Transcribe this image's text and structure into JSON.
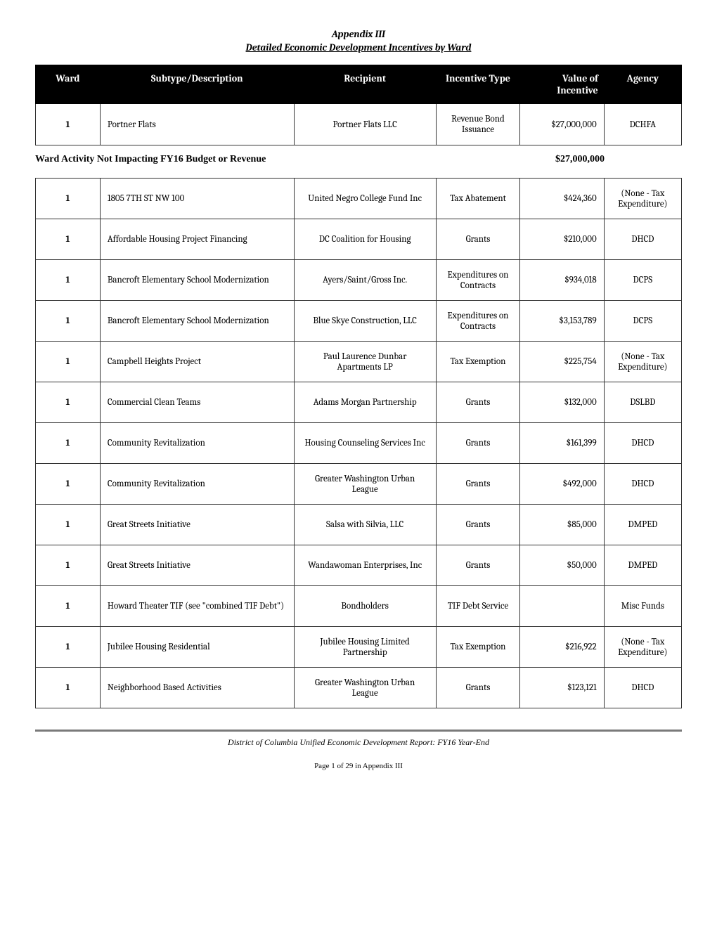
{
  "appendix": {
    "title": "Appendix III",
    "subtitle": "Detailed Economic Development Incentives by Ward"
  },
  "header_table": {
    "columns": [
      "Ward",
      "Subtype/Description",
      "Recipient",
      "Incentive Type",
      "Value of Incentive",
      "Agency"
    ],
    "row": {
      "ward": "1",
      "subtype": "Portner Flats",
      "recipient": "Portner Flats LLC",
      "incentive_type": "Revenue Bond Issuance",
      "value": "$27,000,000",
      "agency": "DCHFA"
    }
  },
  "summary": {
    "label": "Ward Activity Not Impacting FY16 Budget or Revenue",
    "amount": "$27,000,000"
  },
  "detail_rows": [
    {
      "ward": "1",
      "subtype": "1805 7TH ST NW 100",
      "recipient": "United Negro College Fund Inc",
      "incentive_type": "Tax Abatement",
      "value": "$424,360",
      "agency": "(None - Tax Expenditure)"
    },
    {
      "ward": "1",
      "subtype": "Affordable Housing Project Financing",
      "recipient": "DC Coalition for Housing",
      "incentive_type": "Grants",
      "value": "$210,000",
      "agency": "DHCD"
    },
    {
      "ward": "1",
      "subtype": "Bancroft Elementary School Modernization",
      "recipient": "Ayers/Saint/Gross Inc.",
      "incentive_type": "Expenditures on Contracts",
      "value": "$934,018",
      "agency": "DCPS"
    },
    {
      "ward": "1",
      "subtype": "Bancroft Elementary School Modernization",
      "recipient": "Blue Skye Construction, LLC",
      "incentive_type": "Expenditures on Contracts",
      "value": "$3,153,789",
      "agency": "DCPS"
    },
    {
      "ward": "1",
      "subtype": "Campbell Heights Project",
      "recipient": "Paul Laurence Dunbar Apartments LP",
      "incentive_type": "Tax Exemption",
      "value": "$225,754",
      "agency": "(None - Tax Expenditure)"
    },
    {
      "ward": "1",
      "subtype": "Commercial Clean Teams",
      "recipient": "Adams Morgan Partnership",
      "incentive_type": "Grants",
      "value": "$132,000",
      "agency": "DSLBD"
    },
    {
      "ward": "1",
      "subtype": "Community Revitalization",
      "recipient": "Housing Counseling Services Inc",
      "incentive_type": "Grants",
      "value": "$161,399",
      "agency": "DHCD"
    },
    {
      "ward": "1",
      "subtype": "Community Revitalization",
      "recipient": "Greater Washington Urban League",
      "incentive_type": "Grants",
      "value": "$492,000",
      "agency": "DHCD"
    },
    {
      "ward": "1",
      "subtype": "Great Streets Initiative",
      "recipient": "Salsa with Silvia, LLC",
      "incentive_type": "Grants",
      "value": "$85,000",
      "agency": "DMPED"
    },
    {
      "ward": "1",
      "subtype": "Great Streets Initiative",
      "recipient": "Wandawoman Enterprises, Inc",
      "incentive_type": "Grants",
      "value": "$50,000",
      "agency": "DMPED"
    },
    {
      "ward": "1",
      "subtype": "Howard Theater TIF (see \"combined TIF Debt\")",
      "recipient": "Bondholders",
      "incentive_type": "TIF Debt Service",
      "value": "",
      "agency": "Misc Funds"
    },
    {
      "ward": "1",
      "subtype": "Jubilee Housing Residential",
      "recipient": "Jubilee Housing Limited Partnership",
      "incentive_type": "Tax Exemption",
      "value": "$216,922",
      "agency": "(None - Tax Expenditure)"
    },
    {
      "ward": "1",
      "subtype": "Neighborhood Based Activities",
      "recipient": "Greater Washington Urban League",
      "incentive_type": "Grants",
      "value": "$123,121",
      "agency": "DHCD"
    }
  ],
  "footer": {
    "text": "District of Columbia Unified Economic Development Report: FY16 Year-End",
    "page": "Page 1 of 29 in Appendix III"
  },
  "styling": {
    "header_bg": "#000000",
    "header_fg": "#ffffff",
    "border_color": "#333333",
    "page_bg": "#ffffff",
    "body_font": "Cambria, Georgia, serif",
    "footer_rule_color": "#7a7a7a"
  }
}
